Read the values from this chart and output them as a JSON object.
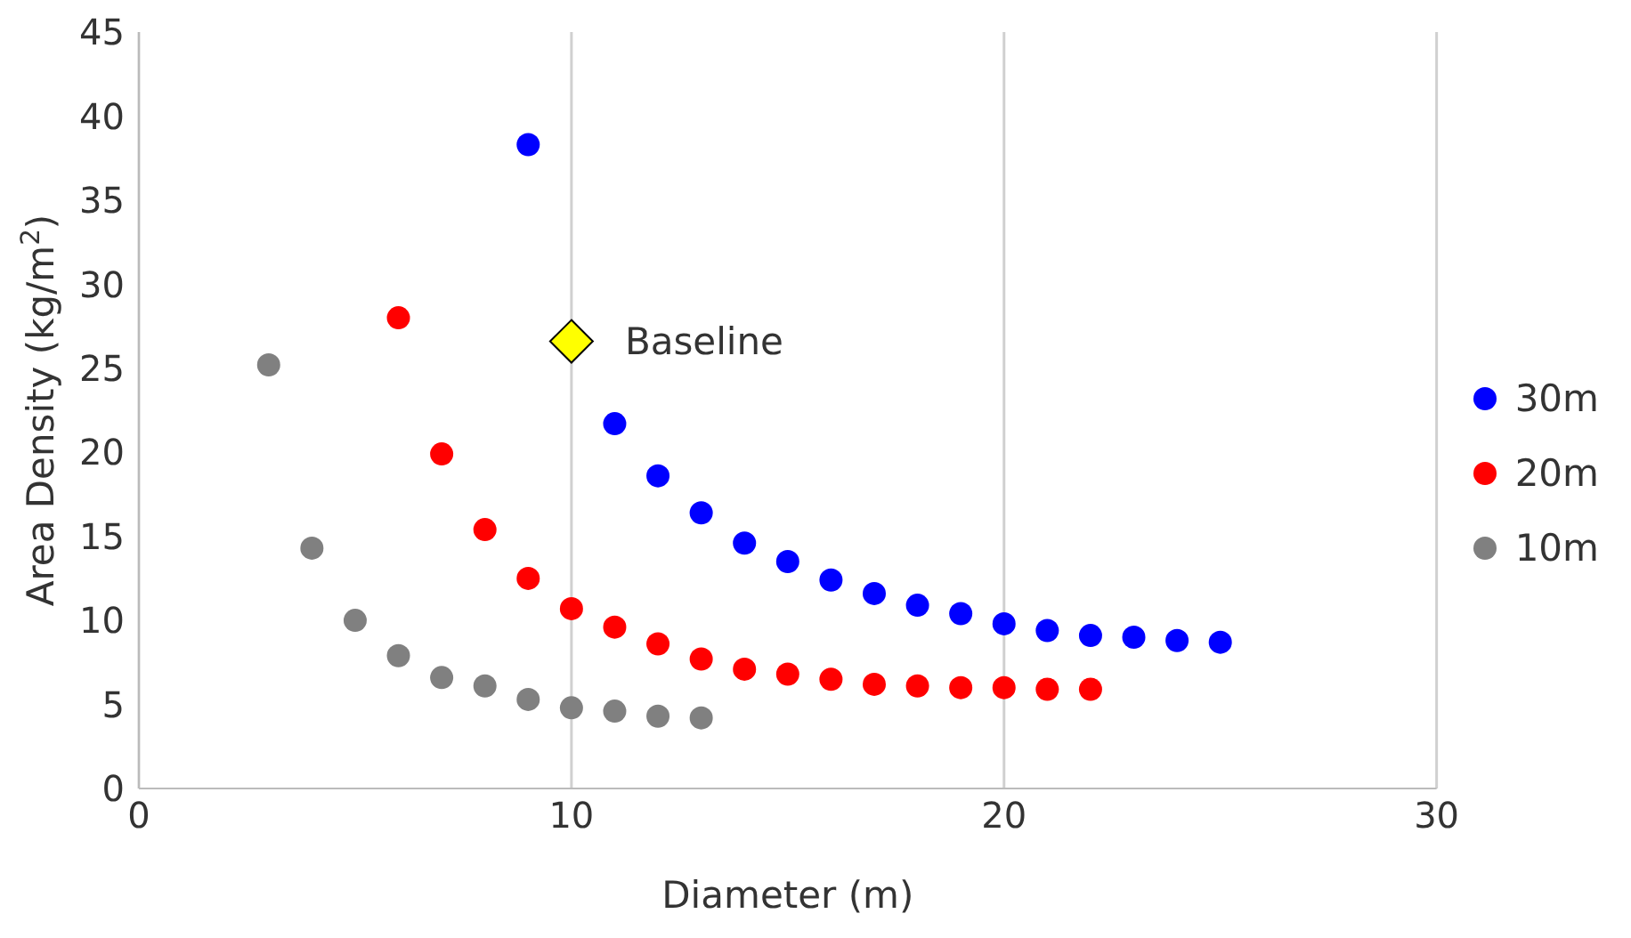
{
  "chart_data": {
    "type": "scatter",
    "xlabel": "Diameter (m)",
    "ylabel": "Area Density (kg/m$^{2}$)",
    "xlim": [
      0,
      30
    ],
    "xticks": [
      0,
      10,
      20,
      30
    ],
    "ylim": [
      0,
      45
    ],
    "yticks": [
      0,
      5,
      10,
      15,
      20,
      25,
      30,
      35,
      40,
      45
    ],
    "grid": "x",
    "legend": "right",
    "marker": "circle",
    "series": [
      {
        "name": "30m",
        "color": "#0000ff",
        "x": [
          9,
          11,
          12,
          13,
          14,
          15,
          16,
          17,
          18,
          19,
          20,
          21,
          22,
          23,
          24,
          25
        ],
        "values": [
          38.3,
          21.7,
          18.6,
          16.4,
          14.6,
          13.5,
          12.4,
          11.6,
          10.9,
          10.4,
          9.8,
          9.4,
          9.1,
          9.0,
          8.8,
          8.7
        ]
      },
      {
        "name": "20m",
        "color": "#ff0000",
        "x": [
          6,
          7,
          8,
          9,
          10,
          11,
          12,
          13,
          14,
          15,
          16,
          17,
          18,
          19,
          20,
          21,
          22
        ],
        "values": [
          28.0,
          19.9,
          15.4,
          12.5,
          10.7,
          9.6,
          8.6,
          7.7,
          7.1,
          6.8,
          6.5,
          6.2,
          6.1,
          6.0,
          6.0,
          5.9,
          5.9
        ]
      },
      {
        "name": "10m",
        "color": "#808080",
        "x": [
          3,
          4,
          5,
          6,
          7,
          8,
          9,
          10,
          11,
          12,
          13
        ],
        "values": [
          25.2,
          14.3,
          10.0,
          7.9,
          6.6,
          6.1,
          5.3,
          4.8,
          4.6,
          4.3,
          4.2
        ]
      },
      {
        "color": "#ffff00",
        "marker": "diamond",
        "x": [
          10
        ],
        "values": [
          26.6
        ]
      }
    ],
    "annotations": [
      {
        "text": "Baseline",
        "x": 10,
        "y": 26.6
      }
    ]
  }
}
